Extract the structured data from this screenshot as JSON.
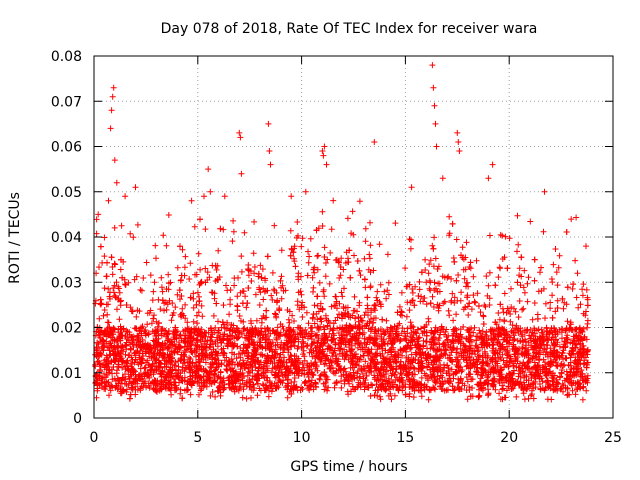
{
  "chart_data": {
    "type": "scatter",
    "title": "Day 078 of 2018, Rate Of TEC Index for receiver wara",
    "xlabel": "GPS time / hours",
    "ylabel": "ROTI / TECUs",
    "xlim": [
      0,
      25
    ],
    "ylim": [
      0,
      0.08
    ],
    "xticks": [
      0,
      5,
      10,
      15,
      20,
      25
    ],
    "xtick_labels": [
      "0",
      "5",
      "10",
      "15",
      "20",
      "25"
    ],
    "yticks": [
      0,
      0.01,
      0.02,
      0.03,
      0.04,
      0.05,
      0.06,
      0.07,
      0.08
    ],
    "ytick_labels": [
      "0",
      "0.01",
      "0.02",
      "0.03",
      "0.04",
      "0.05",
      "0.06",
      "0.07",
      "0.08"
    ],
    "grid": true,
    "marker": "+",
    "marker_color": "#ff0000",
    "series": [
      {
        "name": "ROTI",
        "note": "dense band of points over 0-23.8 h, mostly 0.005-0.03 TECU, with sparse spikes",
        "points": [
          [
            0.1,
            0.032
          ],
          [
            0.2,
            0.045
          ],
          [
            0.7,
            0.048
          ],
          [
            0.8,
            0.064
          ],
          [
            0.85,
            0.068
          ],
          [
            0.9,
            0.071
          ],
          [
            0.95,
            0.073
          ],
          [
            1.0,
            0.057
          ],
          [
            1.1,
            0.052
          ],
          [
            1.5,
            0.049
          ],
          [
            2.0,
            0.051
          ],
          [
            4.7,
            0.048
          ],
          [
            5.3,
            0.049
          ],
          [
            5.5,
            0.055
          ],
          [
            5.6,
            0.05
          ],
          [
            6.3,
            0.049
          ],
          [
            7.0,
            0.063
          ],
          [
            7.05,
            0.062
          ],
          [
            7.1,
            0.054
          ],
          [
            8.4,
            0.065
          ],
          [
            8.45,
            0.059
          ],
          [
            8.5,
            0.056
          ],
          [
            9.5,
            0.049
          ],
          [
            10.2,
            0.05
          ],
          [
            11.0,
            0.059
          ],
          [
            11.05,
            0.058
          ],
          [
            11.1,
            0.06
          ],
          [
            11.2,
            0.056
          ],
          [
            13.5,
            0.061
          ],
          [
            15.3,
            0.051
          ],
          [
            16.3,
            0.078
          ],
          [
            16.35,
            0.073
          ],
          [
            16.4,
            0.069
          ],
          [
            16.45,
            0.065
          ],
          [
            16.5,
            0.06
          ],
          [
            16.8,
            0.053
          ],
          [
            17.5,
            0.063
          ],
          [
            17.55,
            0.061
          ],
          [
            17.6,
            0.059
          ],
          [
            19.0,
            0.053
          ],
          [
            19.2,
            0.056
          ],
          [
            21.7,
            0.05
          ],
          [
            23.7,
            0.038
          ]
        ]
      }
    ]
  }
}
